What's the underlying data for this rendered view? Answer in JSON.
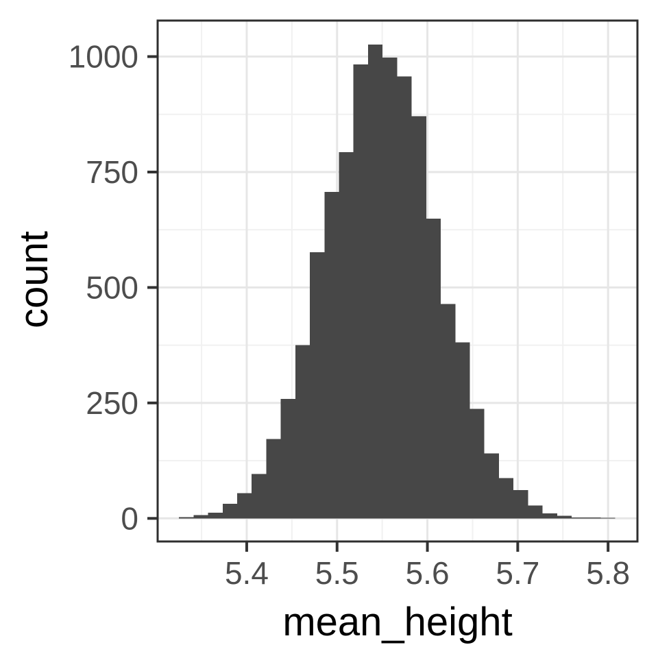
{
  "figure": {
    "background": "#FFFFFF",
    "panel_background": "#FFFFFF",
    "panel_border_color": "#2E2E2E",
    "bar_fill": "#474747",
    "grid_major_color": "#E6E6E6",
    "grid_minor_color": "#F1F1F1",
    "tick_color": "#333333",
    "tick_label_color": "#4D4D4D",
    "axis_title_color": "#000000"
  },
  "chart_data": {
    "type": "bar",
    "subtype": "histogram",
    "title": "",
    "xlabel": "mean_height",
    "ylabel": "count",
    "bin_start": 5.325,
    "bin_width": 0.0161,
    "counts": [
      3,
      7,
      12,
      32,
      55,
      96,
      172,
      259,
      375,
      576,
      707,
      793,
      983,
      1026,
      998,
      957,
      871,
      649,
      464,
      381,
      237,
      141,
      87,
      61,
      28,
      11,
      6,
      2,
      2,
      1
    ],
    "x_ticks": [
      5.4,
      5.5,
      5.6,
      5.7,
      5.8
    ],
    "y_ticks": [
      0,
      250,
      500,
      750,
      1000
    ],
    "x_minor_ticks": [
      5.35,
      5.45,
      5.55,
      5.65,
      5.75
    ],
    "y_minor_ticks": [
      125,
      375,
      625,
      875
    ],
    "xlim": [
      5.3014,
      5.8325
    ],
    "ylim": [
      -50,
      1078
    ],
    "grid": "on",
    "legend": "none"
  }
}
